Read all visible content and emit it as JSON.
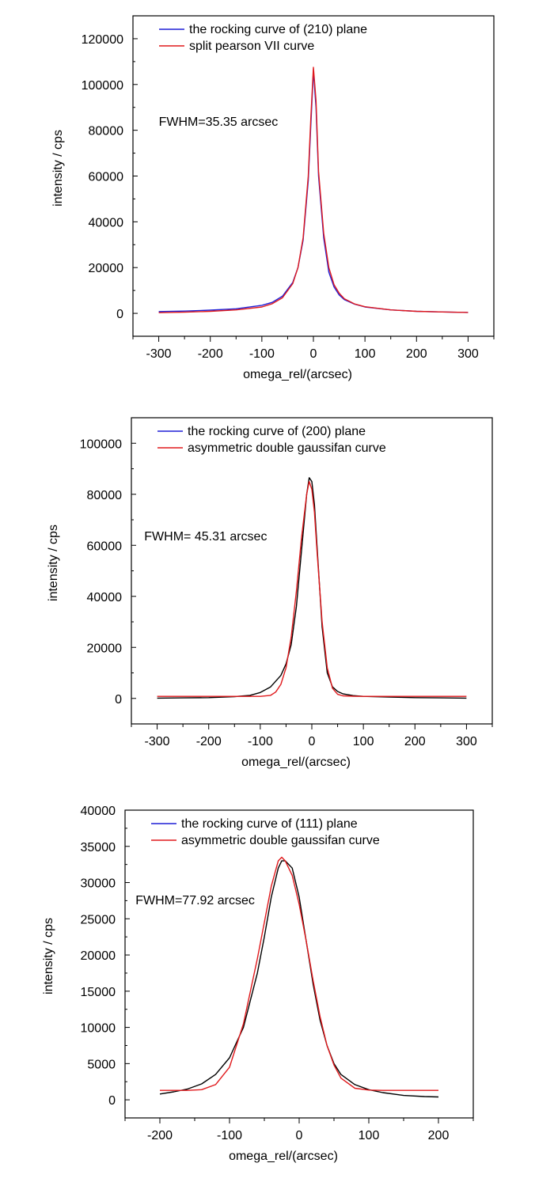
{
  "chart_data": [
    {
      "type": "line",
      "xlabel": "omega_rel/(arcsec)",
      "ylabel": "intensity / cps",
      "xlim": [
        -350,
        350
      ],
      "ylim": [
        -10000,
        130000
      ],
      "xticks": [
        -300,
        -200,
        -100,
        0,
        100,
        200,
        300
      ],
      "yticks": [
        0,
        20000,
        40000,
        60000,
        80000,
        100000,
        120000
      ],
      "xtick_labels": [
        "-300",
        "-200",
        "-100",
        "0",
        "100",
        "200",
        "300"
      ],
      "ytick_labels": [
        "0",
        "20000",
        "40000",
        "60000",
        "80000",
        "100000",
        "120000"
      ],
      "annotation": {
        "text": "FWHM=35.35 arcsec",
        "x": -300,
        "y": 82000
      },
      "legend_position": "top-left",
      "series": [
        {
          "name": "the rocking curve of (210) plane",
          "color": "#1f1fd6",
          "x": [
            -300,
            -250,
            -200,
            -150,
            -100,
            -80,
            -60,
            -40,
            -30,
            -20,
            -10,
            -5,
            0,
            5,
            10,
            20,
            30,
            40,
            50,
            60,
            80,
            100,
            150,
            200,
            250,
            300
          ],
          "y": [
            800,
            1000,
            1400,
            2000,
            3500,
            4800,
            7500,
            13500,
            20000,
            32000,
            58000,
            82000,
            106000,
            90000,
            60000,
            33000,
            18000,
            11500,
            8000,
            6000,
            4000,
            2800,
            1500,
            900,
            600,
            400
          ]
        },
        {
          "name": "split pearson VII curve",
          "color": "#e0191c",
          "x": [
            -300,
            -250,
            -200,
            -150,
            -100,
            -80,
            -60,
            -40,
            -30,
            -20,
            -10,
            -5,
            0,
            5,
            10,
            20,
            30,
            40,
            50,
            60,
            80,
            100,
            150,
            200,
            250,
            300
          ],
          "y": [
            300,
            500,
            900,
            1500,
            2800,
            4200,
            6800,
            13000,
            20000,
            33000,
            60000,
            85000,
            107500,
            93000,
            62000,
            35000,
            20000,
            12500,
            8800,
            6400,
            4100,
            2900,
            1500,
            900,
            600,
            400
          ]
        }
      ]
    },
    {
      "type": "line",
      "xlabel": "omega_rel/(arcsec)",
      "ylabel": "intensity / cps",
      "xlim": [
        -350,
        350
      ],
      "ylim": [
        -10000,
        110000
      ],
      "xticks": [
        -300,
        -200,
        -100,
        0,
        100,
        200,
        300
      ],
      "yticks": [
        0,
        20000,
        40000,
        60000,
        80000,
        100000
      ],
      "xtick_labels": [
        "-300",
        "-200",
        "-100",
        "0",
        "100",
        "200",
        "300"
      ],
      "ytick_labels": [
        "0",
        "20000",
        "40000",
        "60000",
        "80000",
        "100000"
      ],
      "annotation": {
        "text": "FWHM= 45.31 arcsec",
        "x": -325,
        "y": 62000
      },
      "legend_position": "top-left",
      "series": [
        {
          "name": "the rocking curve of (200) plane",
          "color": "#000000",
          "x": [
            -300,
            -250,
            -200,
            -150,
            -120,
            -100,
            -80,
            -60,
            -50,
            -40,
            -30,
            -20,
            -10,
            -5,
            0,
            5,
            10,
            20,
            30,
            40,
            50,
            60,
            80,
            100,
            150,
            200,
            250,
            300
          ],
          "y": [
            100,
            200,
            300,
            700,
            1200,
            2300,
            4500,
            9000,
            13500,
            21000,
            36000,
            58000,
            80000,
            86500,
            85000,
            76000,
            60000,
            28000,
            10000,
            4500,
            2700,
            1800,
            1100,
            800,
            500,
            300,
            200,
            100
          ],
          "legend_color": "#1f1fd6"
        },
        {
          "name": "asymmetric double gaussifan curve",
          "color": "#e0191c",
          "x": [
            -300,
            -250,
            -200,
            -150,
            -100,
            -80,
            -70,
            -60,
            -50,
            -40,
            -30,
            -20,
            -10,
            -5,
            0,
            5,
            10,
            20,
            30,
            40,
            50,
            60,
            80,
            100,
            150,
            200,
            250,
            300
          ],
          "y": [
            800,
            800,
            800,
            800,
            800,
            1200,
            2500,
            5500,
            12000,
            24000,
            42000,
            63000,
            80000,
            85000,
            82000,
            73000,
            58000,
            30000,
            12000,
            4000,
            1600,
            1000,
            850,
            800,
            800,
            800,
            800,
            800
          ]
        }
      ]
    },
    {
      "type": "line",
      "xlabel": "omega_rel/(arcsec)",
      "ylabel": "intensity / cps",
      "xlim": [
        -250,
        250
      ],
      "ylim": [
        -2500,
        40000
      ],
      "xticks": [
        -200,
        -100,
        0,
        100,
        200
      ],
      "yticks": [
        0,
        5000,
        10000,
        15000,
        20000,
        25000,
        30000,
        35000,
        40000
      ],
      "xtick_labels": [
        "-200",
        "-100",
        "0",
        "100",
        "200"
      ],
      "ytick_labels": [
        "0",
        "5000",
        "10000",
        "15000",
        "20000",
        "25000",
        "30000",
        "35000",
        "40000"
      ],
      "annotation": {
        "text": "FWHM=77.92 arcsec",
        "x": -235,
        "y": 27000
      },
      "legend_position": "top-left",
      "series": [
        {
          "name": "the rocking curve of (111) plane",
          "color": "#000000",
          "x": [
            -200,
            -180,
            -160,
            -140,
            -120,
            -100,
            -80,
            -60,
            -50,
            -40,
            -30,
            -25,
            -20,
            -10,
            0,
            10,
            20,
            30,
            40,
            50,
            60,
            80,
            100,
            120,
            150,
            180,
            200
          ],
          "y": [
            800,
            1100,
            1500,
            2200,
            3500,
            5800,
            10000,
            17500,
            22500,
            28000,
            32000,
            33000,
            33000,
            32000,
            28000,
            22000,
            16000,
            11000,
            7500,
            5000,
            3500,
            2100,
            1400,
            1000,
            600,
            450,
            400
          ],
          "legend_color": "#1f1fd6"
        },
        {
          "name": "asymmetric double gaussifan curve",
          "color": "#e0191c",
          "x": [
            -200,
            -160,
            -140,
            -120,
            -100,
            -80,
            -60,
            -50,
            -40,
            -30,
            -25,
            -20,
            -10,
            0,
            10,
            20,
            30,
            40,
            50,
            60,
            80,
            100,
            120,
            150,
            180,
            200
          ],
          "y": [
            1300,
            1300,
            1400,
            2100,
            4500,
            10500,
            19500,
            24500,
            29500,
            33000,
            33500,
            33000,
            31000,
            27000,
            22000,
            16500,
            11500,
            7500,
            4800,
            3000,
            1600,
            1350,
            1300,
            1300,
            1300,
            1300
          ]
        }
      ]
    }
  ]
}
